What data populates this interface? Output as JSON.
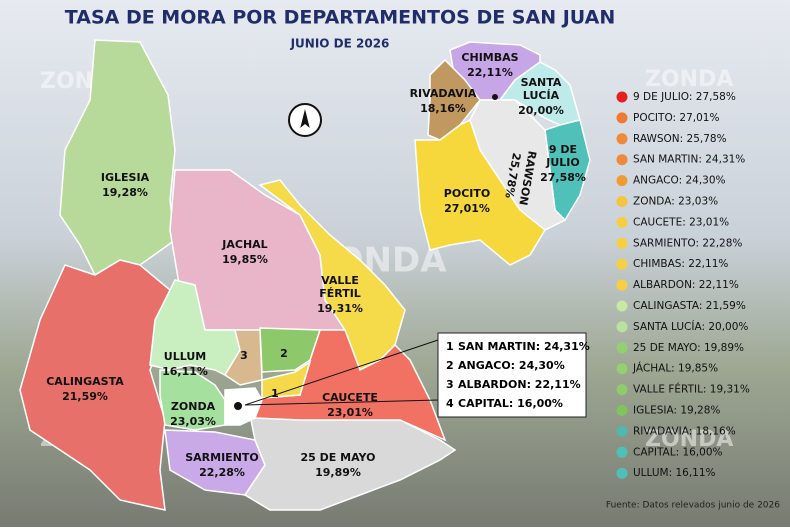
{
  "header": {
    "title": "TASA DE MORA POR DEPARTAMENTOS DE SAN JUAN",
    "subtitle": "JUNIO DE 2026"
  },
  "watermark": "ZONDA",
  "map_labels": [
    {
      "name": [
        "IGLESIA"
      ],
      "rate": "19,28%"
    },
    {
      "name": [
        "JACHAL"
      ],
      "rate": "19,85%"
    },
    {
      "name": [
        "VALLE",
        "FÉRTIL"
      ],
      "rate": "19,31%"
    },
    {
      "name": [
        "CALINGASTA"
      ],
      "rate": "21,59%"
    },
    {
      "name": [
        "ULLUM"
      ],
      "rate": "16,11%"
    },
    {
      "name": [
        "ZONDA"
      ],
      "rate": "23,03%"
    },
    {
      "name": [
        "CAUCETE"
      ],
      "rate": "23,01%"
    },
    {
      "name": [
        "SARMIENTO"
      ],
      "rate": "22,28%"
    },
    {
      "name": [
        "25 DE MAYO"
      ],
      "rate": "19,89%"
    },
    {
      "name": [
        "CHIMBAS"
      ],
      "rate": "22,11%"
    },
    {
      "name": [
        "SANTA",
        "LUCÍA"
      ],
      "rate": "20,00%"
    },
    {
      "name": [
        "RIVADAVIA"
      ],
      "rate": "18,16%"
    },
    {
      "name": [
        "9 DE",
        "JULIO"
      ],
      "rate": "27,58%"
    },
    {
      "name": [
        "POCITO"
      ],
      "rate": "27,01%"
    },
    {
      "name": [
        "RAWSON"
      ],
      "rate": "25,78%"
    }
  ],
  "inset_box": [
    {
      "num": "1",
      "label": "SAN MARTIN: 24,31%"
    },
    {
      "num": "2",
      "label": "ANGACO: 24,30%"
    },
    {
      "num": "3",
      "label": "ALBARDON: 22,11%"
    },
    {
      "num": "4",
      "label": "CAPITAL: 16,00%"
    }
  ],
  "legend": [
    {
      "label": "9 DE JULIO: 27,58%",
      "color": "#e3201e"
    },
    {
      "label": "POCITO: 27,01%",
      "color": "#f07a32"
    },
    {
      "label": "RAWSON: 25,78%",
      "color": "#f08a3a"
    },
    {
      "label": "SAN MARTIN: 24,31%",
      "color": "#f08a3a"
    },
    {
      "label": "ANGACO: 24,30%",
      "color": "#f09a34"
    },
    {
      "label": "ZONDA: 23,03%",
      "color": "#f6c43e"
    },
    {
      "label": "CAUCETE: 23,01%",
      "color": "#f6cf40"
    },
    {
      "label": "SARMIENTO: 22,28%",
      "color": "#f6d040"
    },
    {
      "label": "CHIMBAS: 22,11%",
      "color": "#f6d040"
    },
    {
      "label": "ALBARDON: 22,11%",
      "color": "#f6d040"
    },
    {
      "label": "CALINGASTA: 21,59%",
      "color": "#c9e8a2"
    },
    {
      "label": "SANTA LUCÍA: 20,00%",
      "color": "#b8e29e"
    },
    {
      "label": "25 DE MAYO: 19,89%",
      "color": "#94d072"
    },
    {
      "label": "JÁCHAL: 19,85%",
      "color": "#94d072"
    },
    {
      "label": "VALLE FÉRTIL: 19,31%",
      "color": "#90cc6c"
    },
    {
      "label": "IGLESIA: 19,28%",
      "color": "#80c45e"
    },
    {
      "label": "RIVADAVIA: 18,16%",
      "color": "#4fb8b0"
    },
    {
      "label": "CAPITAL: 16,00%",
      "color": "#4fc0b8"
    },
    {
      "label": "ULLUM: 16,11%",
      "color": "#4fc0b8"
    }
  ],
  "source": "Fuente: Datos relevados junio de 2026"
}
